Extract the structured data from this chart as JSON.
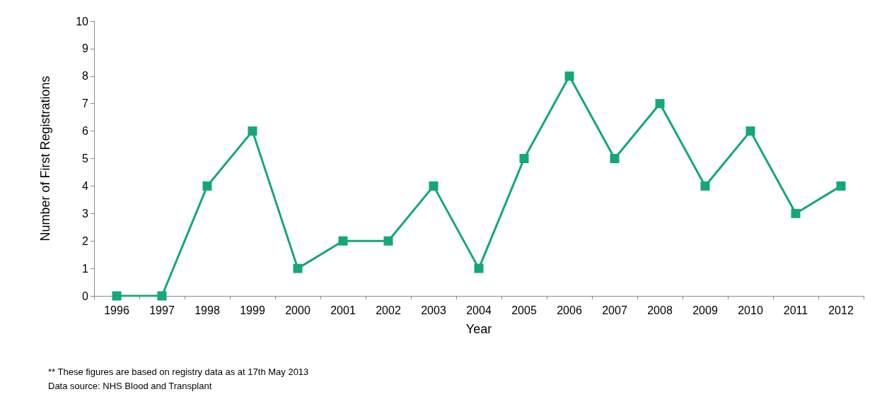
{
  "chart_data": {
    "type": "line",
    "xlabel": "Year",
    "ylabel": "Number of First Registrations",
    "categories": [
      "1996",
      "1997",
      "1998",
      "1999",
      "2000",
      "2001",
      "2002",
      "2003",
      "2004",
      "2005",
      "2006",
      "2007",
      "2008",
      "2009",
      "2010",
      "2011",
      "2012"
    ],
    "series": [
      {
        "color": "#13a874",
        "values": [
          0,
          0,
          4,
          6,
          1,
          2,
          2,
          4,
          1,
          5,
          8,
          5,
          7,
          4,
          6,
          3,
          4
        ]
      }
    ],
    "ylim": [
      0,
      10
    ],
    "yticks": [
      0,
      1,
      2,
      3,
      4,
      5,
      6,
      7,
      8,
      9,
      10
    ],
    "grid": false,
    "marker": "square",
    "line_style": "solid",
    "annotations": [
      "** These figures are based on registry data as at 17th May 2013",
      "Data source: NHS Blood and Transplant"
    ]
  }
}
